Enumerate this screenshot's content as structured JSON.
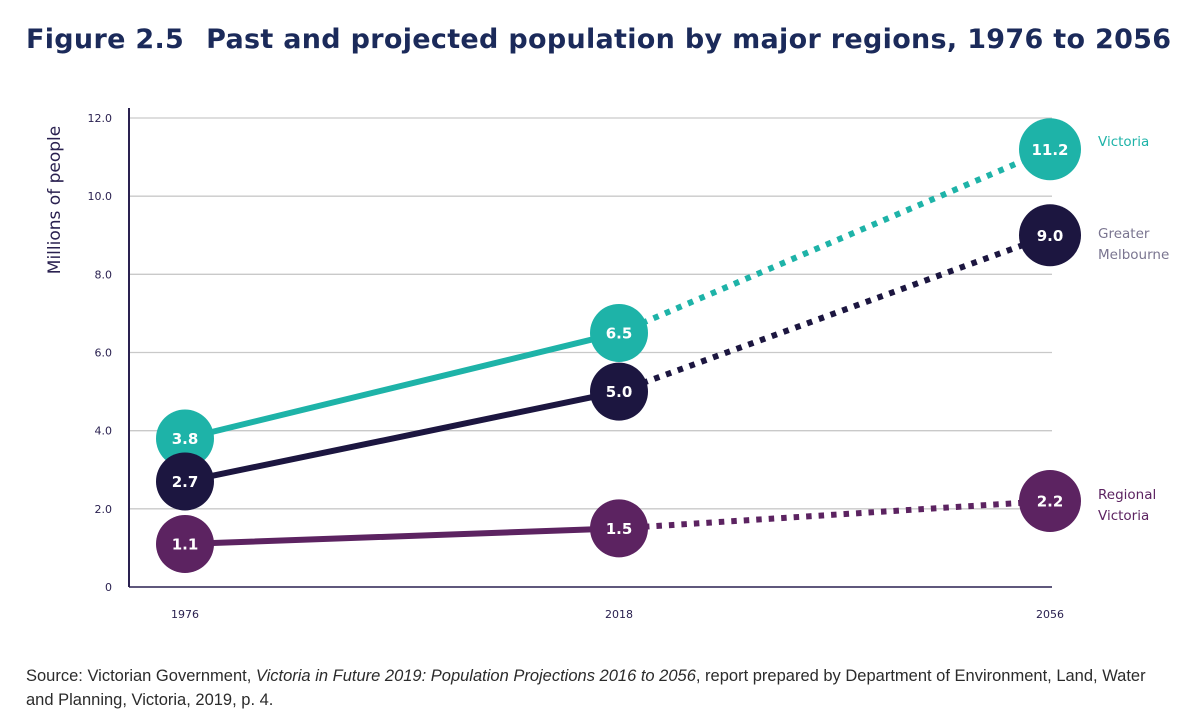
{
  "figure": {
    "number": "Figure 2.5",
    "title": "Past and projected population by major regions, 1976 to 2056"
  },
  "source": {
    "prefix": "Source: Victorian Government, ",
    "publication": "Victoria in Future 2019: Population Projections 2016 to 2056",
    "suffix": ", report prepared by Department of Environment, Land, Water and Planning, Victoria, 2019, p. 4."
  },
  "chart_data": {
    "type": "line",
    "title": "Past and projected population by major regions, 1976 to 2056",
    "xlabel": "",
    "ylabel": "Millions of people",
    "ylim": [
      0,
      12
    ],
    "yticks": [
      "0",
      "2.0",
      "4.0",
      "6.0",
      "8.0",
      "10.0",
      "12.0"
    ],
    "ytick_values": [
      0,
      2,
      4,
      6,
      8,
      10,
      12
    ],
    "categories": [
      "1976",
      "2018",
      "2056"
    ],
    "grid": true,
    "legend": "direct labels at right",
    "series": [
      {
        "name": "Victoria",
        "values": [
          3.8,
          6.5,
          11.2
        ],
        "color": "#1eb3a8",
        "actual_through": "2018",
        "projected_from": "2018"
      },
      {
        "name": "Greater Melbourne",
        "values": [
          2.7,
          5.0,
          9.0
        ],
        "color": "#1c1640",
        "actual_through": "2018",
        "projected_from": "2018"
      },
      {
        "name": "Regional Victoria",
        "values": [
          1.1,
          1.5,
          2.2
        ],
        "color": "#5c2361",
        "actual_through": "2018",
        "projected_from": "2018"
      }
    ],
    "line_style": "solid for 1976–2018, dotted for 2018–2056 projection"
  }
}
